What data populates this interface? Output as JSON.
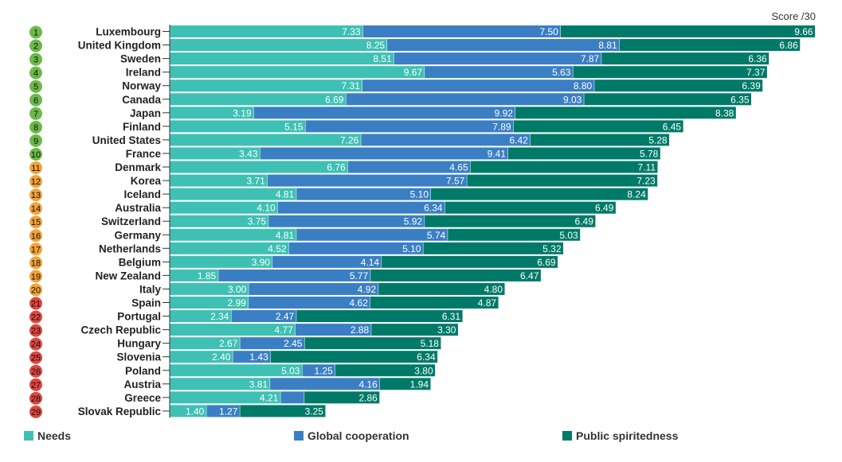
{
  "chart_data": {
    "type": "bar",
    "stacked": true,
    "orientation": "horizontal",
    "score_unit": "Score /30",
    "colors": {
      "needs": "#3fc0b4",
      "global": "#3a7fc4",
      "public": "#007a68",
      "rank_green": "#6cb94a",
      "rank_orange": "#f2a33a",
      "rank_red": "#e0453f"
    },
    "series": [
      {
        "key": "needs",
        "name": "Needs"
      },
      {
        "key": "global",
        "name": "Global cooperation"
      },
      {
        "key": "public",
        "name": "Public spiritedness"
      }
    ],
    "rows": [
      {
        "rank": "1",
        "tier": "green",
        "country": "Luxembourg",
        "needs": 7.33,
        "global": 7.5,
        "public": 9.66
      },
      {
        "rank": "2",
        "tier": "green",
        "country": "United Kingdom",
        "needs": 8.25,
        "global": 8.81,
        "public": 6.86
      },
      {
        "rank": "3",
        "tier": "green",
        "country": "Sweden",
        "needs": 8.51,
        "global": 7.87,
        "public": 6.36
      },
      {
        "rank": "4",
        "tier": "green",
        "country": "Ireland",
        "needs": 9.67,
        "global": 5.63,
        "public": 7.37
      },
      {
        "rank": "5",
        "tier": "green",
        "country": "Norway",
        "needs": 7.31,
        "global": 8.8,
        "public": 6.39
      },
      {
        "rank": "6",
        "tier": "green",
        "country": "Canada",
        "needs": 6.69,
        "global": 9.03,
        "public": 6.35
      },
      {
        "rank": "7",
        "tier": "green",
        "country": "Japan",
        "needs": 3.19,
        "global": 9.92,
        "public": 8.38
      },
      {
        "rank": "8",
        "tier": "green",
        "country": "Finland",
        "needs": 5.15,
        "global": 7.89,
        "public": 6.45
      },
      {
        "rank": "9",
        "tier": "green",
        "country": "United States",
        "needs": 7.26,
        "global": 6.42,
        "public": 5.28
      },
      {
        "rank": "10",
        "tier": "green",
        "country": "France",
        "needs": 3.43,
        "global": 9.41,
        "public": 5.78
      },
      {
        "rank": "11",
        "tier": "orange",
        "country": "Denmark",
        "needs": 6.76,
        "global": 4.65,
        "public": 7.11
      },
      {
        "rank": "12",
        "tier": "orange",
        "country": "Korea",
        "needs": 3.71,
        "global": 7.57,
        "public": 7.23
      },
      {
        "rank": "13",
        "tier": "orange",
        "country": "Iceland",
        "needs": 4.81,
        "global": 5.1,
        "public": 8.24
      },
      {
        "rank": "14",
        "tier": "orange",
        "country": "Australia",
        "needs": 4.1,
        "global": 6.34,
        "public": 6.49
      },
      {
        "rank": "15",
        "tier": "orange",
        "country": "Switzerland",
        "needs": 3.75,
        "global": 5.92,
        "public": 6.49
      },
      {
        "rank": "16",
        "tier": "orange",
        "country": "Germany",
        "needs": 4.81,
        "global": 5.74,
        "public": 5.03
      },
      {
        "rank": "17",
        "tier": "orange",
        "country": "Netherlands",
        "needs": 4.52,
        "global": 5.1,
        "public": 5.32
      },
      {
        "rank": "18",
        "tier": "orange",
        "country": "Belgium",
        "needs": 3.9,
        "global": 4.14,
        "public": 6.69
      },
      {
        "rank": "19",
        "tier": "orange",
        "country": "New Zealand",
        "needs": 1.85,
        "global": 5.77,
        "public": 6.47
      },
      {
        "rank": "20",
        "tier": "orange",
        "country": "Italy",
        "needs": 3.0,
        "global": 4.92,
        "public": 4.8
      },
      {
        "rank": "21",
        "tier": "red",
        "country": "Spain",
        "needs": 2.99,
        "global": 4.62,
        "public": 4.87
      },
      {
        "rank": "22",
        "tier": "red",
        "country": "Portugal",
        "needs": 2.34,
        "global": 2.47,
        "public": 6.31
      },
      {
        "rank": "23",
        "tier": "red",
        "country": "Czech Republic",
        "needs": 4.77,
        "global": 2.88,
        "public": 3.3
      },
      {
        "rank": "24",
        "tier": "red",
        "country": "Hungary",
        "needs": 2.67,
        "global": 2.45,
        "public": 5.18
      },
      {
        "rank": "25",
        "tier": "red",
        "country": "Slovenia",
        "needs": 2.4,
        "global": 1.43,
        "public": 6.34
      },
      {
        "rank": "26",
        "tier": "red",
        "country": "Poland",
        "needs": 5.03,
        "global": 1.25,
        "public": 3.8
      },
      {
        "rank": "27",
        "tier": "red",
        "country": "Austria",
        "needs": 3.81,
        "global": 4.16,
        "public": 1.94
      },
      {
        "rank": "28",
        "tier": "red",
        "country": "Greece",
        "needs": 4.21,
        "global": 0.9,
        "public": 2.86,
        "global_label": ""
      },
      {
        "rank": "29",
        "tier": "red",
        "country": "Slovak Republic",
        "needs": 1.4,
        "global": 1.27,
        "public": 3.25
      }
    ]
  }
}
